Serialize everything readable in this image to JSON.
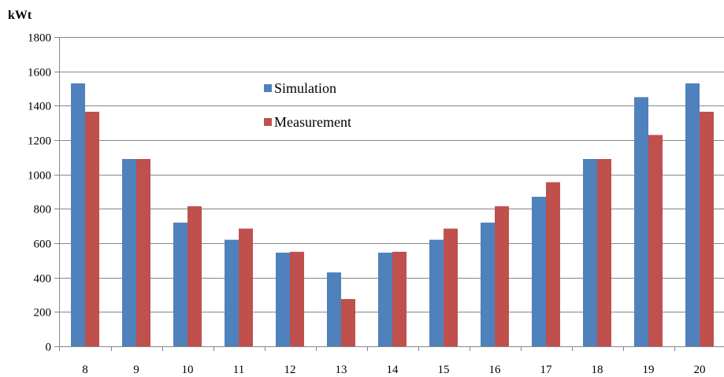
{
  "chart_data": {
    "type": "bar",
    "ylabel": "kWt",
    "ylim": [
      0,
      1800
    ],
    "yticks": [
      0,
      200,
      400,
      600,
      800,
      1000,
      1200,
      1400,
      1600,
      1800
    ],
    "grid": "horizontal",
    "legend_position": "top-center",
    "categories": [
      "8",
      "9",
      "10",
      "11",
      "12",
      "13",
      "14",
      "15",
      "16",
      "17",
      "18",
      "19",
      "20"
    ],
    "series": [
      {
        "name": "Simulation",
        "color": "#4f81bd",
        "values": [
          1530,
          1090,
          720,
          620,
          545,
          430,
          545,
          620,
          720,
          870,
          1090,
          1450,
          1530
        ]
      },
      {
        "name": "Measurement",
        "color": "#c0504d",
        "values": [
          1365,
          1090,
          815,
          685,
          550,
          275,
          550,
          685,
          815,
          955,
          1090,
          1230,
          1365
        ]
      }
    ]
  }
}
